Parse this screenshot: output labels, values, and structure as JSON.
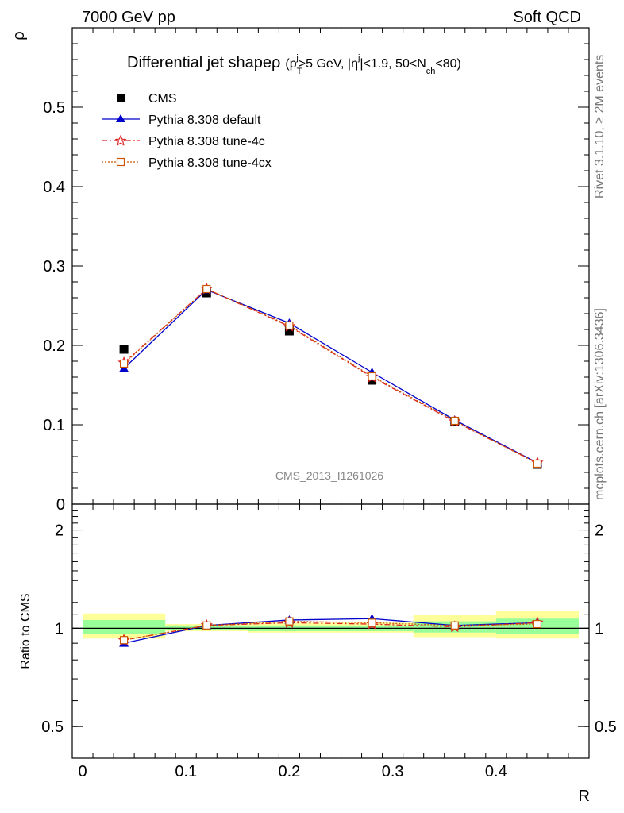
{
  "header": {
    "left": "7000 GeV pp",
    "right": "Soft QCD"
  },
  "side_labels": {
    "rivet": "Rivet 3.1.10, ≥ 2M events",
    "mcplots": "mcplots.cern.ch [arXiv:1306.3436]"
  },
  "chart_data": [
    {
      "type": "line",
      "panel": "main",
      "title": "Differential jet shapeρ (p_T^j>5 GeV, |η^j|<1.9, 50<N_ch<80)",
      "title_parts": {
        "main": "Differential jet shape",
        "rho": "ρ",
        "open": "(p",
        "sub_T": "T",
        "sup_j": "j",
        "cut_pt": ">5 GeV, |η",
        "sup_j2": "j",
        "cut_eta": "|<1.9, 50<N",
        "sub_ch": "ch",
        "close": "<80)"
      },
      "ylabel": "ρ",
      "xlabel": "R",
      "watermark": "CMS_2013_I1261026",
      "xlim": [
        -0.01,
        0.49
      ],
      "ylim": [
        0,
        0.6
      ],
      "yticks": [
        {
          "v": 0.1,
          "label": "0.1"
        },
        {
          "v": 0.2,
          "label": "0.2"
        },
        {
          "v": 0.3,
          "label": "0.3"
        },
        {
          "v": 0.4,
          "label": "0.4"
        },
        {
          "v": 0.5,
          "label": "0.5"
        },
        {
          "v": 0.0,
          "label": "0"
        }
      ],
      "x": [
        0.04,
        0.12,
        0.2,
        0.28,
        0.36,
        0.44
      ],
      "series": [
        {
          "name": "CMS",
          "color": "#000000",
          "marker": "square",
          "values": [
            0.195,
            0.266,
            0.218,
            0.156,
            0.104,
            0.05
          ]
        },
        {
          "name": "Pythia 8.308 default",
          "color": "#0000cc",
          "marker": "triangle",
          "values": [
            0.171,
            0.27,
            0.228,
            0.166,
            0.106,
            0.052
          ]
        },
        {
          "name": "Pythia 8.308 tune-4c",
          "color": "#dd2222",
          "marker": "star",
          "values": [
            0.178,
            0.271,
            0.224,
            0.16,
            0.104,
            0.052
          ]
        },
        {
          "name": "Pythia 8.308 tune-4cx",
          "color": "#cc5500",
          "marker": "open-square",
          "values": [
            0.177,
            0.271,
            0.225,
            0.161,
            0.105,
            0.051
          ]
        }
      ]
    },
    {
      "type": "line",
      "panel": "ratio",
      "ylabel": "Ratio to CMS",
      "xlabel": "R",
      "xlim": [
        -0.01,
        0.49
      ],
      "ylim": [
        0.4,
        2.4
      ],
      "log_y": true,
      "xticks": [
        {
          "v": 0.0,
          "label": "0"
        },
        {
          "v": 0.1,
          "label": "0.1"
        },
        {
          "v": 0.2,
          "label": "0.2"
        },
        {
          "v": 0.3,
          "label": "0.3"
        },
        {
          "v": 0.4,
          "label": "0.4"
        }
      ],
      "yticks": [
        {
          "v": 0.5,
          "label": "0.5"
        },
        {
          "v": 1.0,
          "label": "1"
        },
        {
          "v": 2.0,
          "label": "2"
        }
      ],
      "bands": [
        {
          "x0": 0.0,
          "x1": 0.08,
          "yellow": [
            0.93,
            1.11
          ],
          "green": [
            0.96,
            1.06
          ]
        },
        {
          "x0": 0.08,
          "x1": 0.16,
          "yellow": [
            0.98,
            1.03
          ],
          "green": [
            0.99,
            1.02
          ]
        },
        {
          "x0": 0.16,
          "x1": 0.24,
          "yellow": [
            0.97,
            1.04
          ],
          "green": [
            0.98,
            1.02
          ]
        },
        {
          "x0": 0.24,
          "x1": 0.32,
          "yellow": [
            0.97,
            1.04
          ],
          "green": [
            0.98,
            1.02
          ]
        },
        {
          "x0": 0.32,
          "x1": 0.4,
          "yellow": [
            0.94,
            1.1
          ],
          "green": [
            0.97,
            1.05
          ]
        },
        {
          "x0": 0.4,
          "x1": 0.48,
          "yellow": [
            0.93,
            1.13
          ],
          "green": [
            0.96,
            1.07
          ]
        }
      ],
      "x": [
        0.04,
        0.12,
        0.2,
        0.28,
        0.36,
        0.44
      ],
      "series": [
        {
          "name": "Pythia 8.308 default",
          "color": "#0000cc",
          "marker": "triangle",
          "values": [
            0.9,
            1.02,
            1.06,
            1.07,
            1.02,
            1.04
          ]
        },
        {
          "name": "Pythia 8.308 tune-4c",
          "color": "#dd2222",
          "marker": "star",
          "values": [
            0.92,
            1.02,
            1.04,
            1.03,
            1.01,
            1.04
          ]
        },
        {
          "name": "Pythia 8.308 tune-4cx",
          "color": "#cc5500",
          "marker": "open-square",
          "values": [
            0.92,
            1.02,
            1.05,
            1.04,
            1.02,
            1.03
          ]
        }
      ]
    }
  ]
}
